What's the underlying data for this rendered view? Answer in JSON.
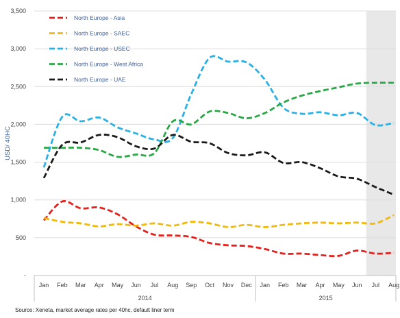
{
  "chart_data": {
    "type": "line",
    "ylabel": "USD/ 40HC",
    "ylim": [
      0,
      3500
    ],
    "yticks": [
      "-",
      "500",
      "1,000",
      "1,500",
      "2,000",
      "2,500",
      "3,000",
      "3,500"
    ],
    "months": [
      "Jan",
      "Feb",
      "Mar",
      "Apr",
      "May",
      "Jun",
      "Jul",
      "Aug",
      "Sep",
      "Oct",
      "Nov",
      "Dec",
      "Jan",
      "Feb",
      "Mar",
      "Apr",
      "May",
      "Jun",
      "Jul",
      "Aug"
    ],
    "years": [
      "2014",
      "2015"
    ],
    "forecast_shading": {
      "from_index": 18,
      "to_index": 19
    },
    "grid": "horizontal",
    "legend_position": "top-left",
    "series": [
      {
        "name": "North Europe - Asia",
        "color": "#e3201b",
        "values": [
          730,
          980,
          890,
          900,
          810,
          650,
          540,
          530,
          510,
          430,
          400,
          390,
          350,
          290,
          290,
          270,
          260,
          330,
          290,
          300
        ]
      },
      {
        "name": "North Europe - SAEC",
        "color": "#f2b80c",
        "values": [
          760,
          710,
          690,
          650,
          680,
          660,
          690,
          660,
          710,
          690,
          640,
          670,
          640,
          670,
          690,
          700,
          690,
          700,
          690,
          800
        ]
      },
      {
        "name": "North Europe - USEC",
        "color": "#29b0e5",
        "values": [
          1430,
          2100,
          2040,
          2090,
          1960,
          1880,
          1800,
          1820,
          2400,
          2880,
          2830,
          2820,
          2590,
          2220,
          2140,
          2160,
          2120,
          2150,
          1990,
          2020
        ]
      },
      {
        "name": "North Europe - West Africa",
        "color": "#28a745",
        "values": [
          1690,
          1690,
          1690,
          1660,
          1570,
          1600,
          1620,
          2040,
          2000,
          2170,
          2150,
          2080,
          2150,
          2290,
          2380,
          2440,
          2490,
          2540,
          2550,
          2550
        ]
      },
      {
        "name": "North Europe - UAE",
        "color": "#1a1a1a",
        "values": [
          1290,
          1730,
          1760,
          1860,
          1830,
          1710,
          1680,
          1860,
          1770,
          1750,
          1620,
          1590,
          1630,
          1490,
          1500,
          1420,
          1310,
          1280,
          1170,
          1070
        ]
      }
    ],
    "source": "Source: Xeneta, market average rates per 40hc, default liner term"
  }
}
